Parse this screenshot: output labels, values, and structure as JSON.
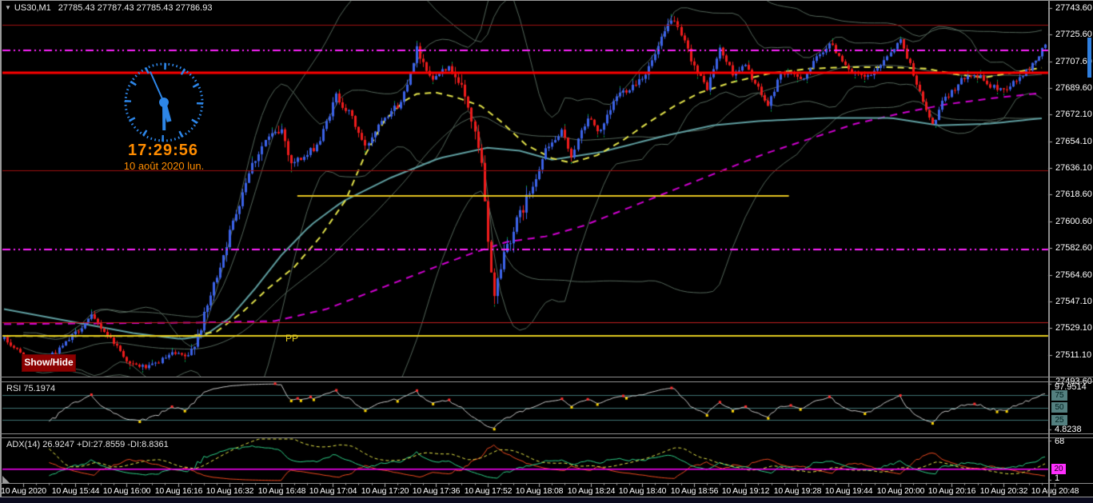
{
  "title": {
    "symbol": "US30,M1",
    "ohlc_text": "27785.43 27787.43 27785.43 27786.93"
  },
  "clock": {
    "time": "17:29:56",
    "date": "10 août 2020 lun."
  },
  "buttons": {
    "show_hide": "Show/Hide"
  },
  "labels": {
    "pivot": "PP"
  },
  "rsi_panel": {
    "header": "RSI 75.1974",
    "axis_max": "97.9514",
    "axis_min": "4.8238",
    "level_boxes": [
      "75",
      "50",
      "25"
    ]
  },
  "adx_panel": {
    "header": "ADX(14) 26.9247 +DI:27.8559 -DI:8.8361",
    "axis_max": "68",
    "level_box": "20",
    "axis_min": "1"
  },
  "price_axis": [
    "27743.60",
    "27725.60",
    "27707.60",
    "27689.60",
    "27672.10",
    "27654.10",
    "27636.10",
    "27618.60",
    "27600.60",
    "27582.60",
    "27564.60",
    "27547.10",
    "27529.10",
    "27511.10",
    "27493.60"
  ],
  "time_axis": [
    "10 Aug 2020",
    "10 Aug 15:44",
    "10 Aug 16:00",
    "10 Aug 16:16",
    "10 Aug 16:32",
    "10 Aug 16:48",
    "10 Aug 17:04",
    "10 Aug 17:20",
    "10 Aug 17:36",
    "10 Aug 17:52",
    "10 Aug 18:08",
    "10 Aug 18:24",
    "10 Aug 18:40",
    "10 Aug 18:56",
    "10 Aug 19:12",
    "10 Aug 19:28",
    "10 Aug 19:44",
    "10 Aug 20:00",
    "10 Aug 20:16",
    "10 Aug 20:32",
    "10 Aug 20:48"
  ],
  "chart_data": {
    "type": "candlestick",
    "symbol": "US30",
    "timeframe": "M1",
    "last_quote": {
      "open": 27785.43,
      "high": 27787.43,
      "low": 27785.43,
      "close": 27786.93
    },
    "price_range": [
      27493.6,
      27743.6
    ],
    "time_range": [
      "10 Aug 15:28",
      "10 Aug 20:48"
    ],
    "price_path": [
      [
        0,
        27522
      ],
      [
        9,
        27505
      ],
      [
        17,
        27515
      ],
      [
        27,
        27537
      ],
      [
        34,
        27520
      ],
      [
        39,
        27505
      ],
      [
        45,
        27503
      ],
      [
        52,
        27512
      ],
      [
        57,
        27510
      ],
      [
        61,
        27530
      ],
      [
        66,
        27565
      ],
      [
        71,
        27600
      ],
      [
        76,
        27635
      ],
      [
        81,
        27655
      ],
      [
        86,
        27662
      ],
      [
        89,
        27640
      ],
      [
        94,
        27645
      ],
      [
        98,
        27655
      ],
      [
        103,
        27685
      ],
      [
        108,
        27670
      ],
      [
        112,
        27650
      ],
      [
        117,
        27670
      ],
      [
        123,
        27680
      ],
      [
        128,
        27716
      ],
      [
        133,
        27695
      ],
      [
        136,
        27705
      ],
      [
        140,
        27700
      ],
      [
        144,
        27678
      ],
      [
        148,
        27638
      ],
      [
        150,
        27585
      ],
      [
        152,
        27552
      ],
      [
        155,
        27580
      ],
      [
        159,
        27600
      ],
      [
        163,
        27620
      ],
      [
        168,
        27648
      ],
      [
        173,
        27660
      ],
      [
        176,
        27645
      ],
      [
        181,
        27670
      ],
      [
        185,
        27660
      ],
      [
        190,
        27685
      ],
      [
        195,
        27692
      ],
      [
        199,
        27700
      ],
      [
        202,
        27712
      ],
      [
        207,
        27737
      ],
      [
        211,
        27720
      ],
      [
        215,
        27700
      ],
      [
        218,
        27690
      ],
      [
        222,
        27716
      ],
      [
        226,
        27700
      ],
      [
        230,
        27705
      ],
      [
        233,
        27693
      ],
      [
        237,
        27678
      ],
      [
        241,
        27700
      ],
      [
        244,
        27699
      ],
      [
        248,
        27697
      ],
      [
        252,
        27710
      ],
      [
        256,
        27720
      ],
      [
        259,
        27712
      ],
      [
        263,
        27700
      ],
      [
        267,
        27697
      ],
      [
        270,
        27700
      ],
      [
        274,
        27712
      ],
      [
        278,
        27722
      ],
      [
        282,
        27700
      ],
      [
        285,
        27680
      ],
      [
        288,
        27665
      ],
      [
        291,
        27680
      ],
      [
        295,
        27690
      ],
      [
        299,
        27700
      ],
      [
        303,
        27697
      ],
      [
        306,
        27691
      ],
      [
        310,
        27689
      ],
      [
        314,
        27695
      ],
      [
        318,
        27703
      ],
      [
        321,
        27712
      ],
      [
        323,
        27719
      ]
    ],
    "volatility_zones": [
      [
        0,
        59,
        1.0
      ],
      [
        59,
        90,
        2.0
      ],
      [
        90,
        140,
        1.5
      ],
      [
        140,
        163,
        2.7
      ],
      [
        163,
        215,
        1.5
      ],
      [
        215,
        324,
        1.1
      ]
    ],
    "ma_teal": [
      [
        0,
        27542
      ],
      [
        20,
        27534
      ],
      [
        40,
        27526
      ],
      [
        55,
        27522
      ],
      [
        62,
        27524
      ],
      [
        70,
        27536
      ],
      [
        78,
        27556
      ],
      [
        86,
        27578
      ],
      [
        95,
        27598
      ],
      [
        105,
        27614
      ],
      [
        120,
        27630
      ],
      [
        135,
        27643
      ],
      [
        150,
        27650
      ],
      [
        160,
        27648
      ],
      [
        170,
        27642
      ],
      [
        185,
        27647
      ],
      [
        205,
        27658
      ],
      [
        220,
        27665
      ],
      [
        235,
        27668
      ],
      [
        255,
        27670
      ],
      [
        275,
        27670
      ],
      [
        290,
        27665
      ],
      [
        305,
        27666
      ],
      [
        323,
        27670
      ]
    ],
    "ma_yellow": [
      [
        0,
        27524
      ],
      [
        58,
        27524
      ],
      [
        66,
        27527
      ],
      [
        74,
        27540
      ],
      [
        82,
        27556
      ],
      [
        90,
        27570
      ],
      [
        98,
        27590
      ],
      [
        106,
        27615
      ],
      [
        112,
        27645
      ],
      [
        118,
        27668
      ],
      [
        124,
        27681
      ],
      [
        128,
        27686
      ],
      [
        134,
        27687
      ],
      [
        140,
        27684
      ],
      [
        148,
        27678
      ],
      [
        154,
        27668
      ],
      [
        162,
        27652
      ],
      [
        170,
        27643
      ],
      [
        176,
        27640
      ],
      [
        184,
        27645
      ],
      [
        192,
        27655
      ],
      [
        200,
        27667
      ],
      [
        208,
        27678
      ],
      [
        216,
        27687
      ],
      [
        226,
        27694
      ],
      [
        238,
        27700
      ],
      [
        250,
        27703
      ],
      [
        262,
        27704
      ],
      [
        274,
        27704
      ],
      [
        286,
        27703
      ],
      [
        296,
        27699
      ],
      [
        304,
        27697
      ],
      [
        312,
        27700
      ],
      [
        323,
        27704
      ]
    ],
    "ma_magenta": [
      [
        0,
        27532
      ],
      [
        60,
        27533
      ],
      [
        84,
        27534
      ],
      [
        100,
        27542
      ],
      [
        112,
        27552
      ],
      [
        124,
        27562
      ],
      [
        136,
        27572
      ],
      [
        146,
        27580
      ],
      [
        156,
        27587
      ],
      [
        169,
        27591
      ],
      [
        180,
        27598
      ],
      [
        194,
        27610
      ],
      [
        208,
        27622
      ],
      [
        222,
        27634
      ],
      [
        236,
        27646
      ],
      [
        250,
        27656
      ],
      [
        264,
        27666
      ],
      [
        278,
        27673
      ],
      [
        292,
        27679
      ],
      [
        306,
        27683
      ],
      [
        323,
        27687
      ]
    ],
    "levels": [
      {
        "price": 27732.5,
        "color": "#a01010",
        "width": 1,
        "dash": []
      },
      {
        "price": 27715.0,
        "color": "#ff22ff",
        "width": 2,
        "dash": [
          10,
          4,
          2,
          4,
          2,
          4
        ]
      },
      {
        "price": 27700.0,
        "color": "#ff0000",
        "width": 3,
        "dash": []
      },
      {
        "price": 27635.0,
        "color": "#a01010",
        "width": 1,
        "dash": []
      },
      {
        "price": 27618.0,
        "color": "#e6c520",
        "width": 2,
        "dash": [],
        "xfrac": [
          0.282,
          0.752
        ]
      },
      {
        "price": 27582.0,
        "color": "#ff22ff",
        "width": 2,
        "dash": [
          10,
          4,
          2,
          4,
          2,
          4
        ]
      },
      {
        "price": 27533.0,
        "color": "#c22020",
        "width": 1,
        "dash": []
      },
      {
        "price": 27524.0,
        "color": "#e6ce20",
        "width": 2,
        "dash": [],
        "label": "PP"
      }
    ],
    "rsi": {
      "period_value": 75.1974,
      "axis_max": 97.9514,
      "axis_min": 4.8238,
      "levels": [
        75,
        50,
        25
      ]
    },
    "adx": {
      "adx": 26.9247,
      "plus_di": 27.8559,
      "minus_di": 8.8361,
      "level": 20,
      "axis_max": 68,
      "axis_min": 1
    },
    "colors": {
      "bull": "#3c63e8",
      "bear": "#ee1c1c",
      "wick_mark": "#00b050",
      "band_gray": "#54665a",
      "ma_teal": "#5f9ea0",
      "ma_yellow": "#e3e34a",
      "ma_magenta": "#cf00cf",
      "rsi_line": "#c8c8c8",
      "rsi_level": "#3f7474",
      "rsi_peak_dot": "#ff3030",
      "rsi_trough_dot": "#ffd700",
      "adx_line": "#e8e84a",
      "plus_di": "#2ed189",
      "minus_di": "#f04a20",
      "adx_level": "#ff00ff",
      "axis_tick": "#b0b0b0"
    }
  }
}
